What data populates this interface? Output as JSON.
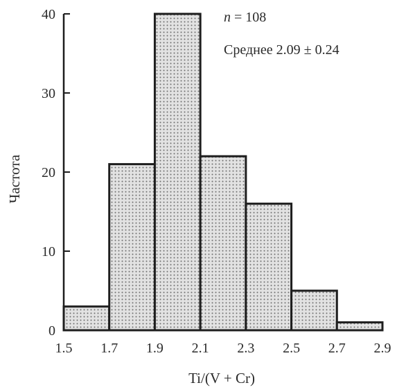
{
  "chart_data": {
    "type": "bar",
    "subtype": "histogram",
    "bin_edges": [
      1.5,
      1.7,
      1.9,
      2.1,
      2.3,
      2.5,
      2.7,
      2.9
    ],
    "values": [
      3,
      21,
      40,
      22,
      16,
      5,
      1
    ],
    "xlabel": "Ti/(V + Cr)",
    "ylabel": "Частота",
    "xlim": [
      1.5,
      2.9
    ],
    "ylim": [
      0,
      40
    ],
    "x_ticks": [
      1.5,
      1.7,
      1.9,
      2.1,
      2.3,
      2.5,
      2.7,
      2.9
    ],
    "x_tick_labels": [
      "1.5",
      "1.7",
      "1.9",
      "2.1",
      "2.3",
      "2.5",
      "2.7",
      "2.9"
    ],
    "y_ticks": [
      0,
      10,
      20,
      30,
      40
    ],
    "y_tick_labels": [
      "0",
      "10",
      "20",
      "30",
      "40"
    ],
    "grid": false,
    "annotations": {
      "n_symbol": "n",
      "n_rest": " = 108",
      "mean_text": "Среднее 2.09 ± 0.24"
    },
    "colors": {
      "bar_fill": "#d4d4d4",
      "bar_dots": "#707070",
      "edge": "#1e1e1e"
    }
  }
}
